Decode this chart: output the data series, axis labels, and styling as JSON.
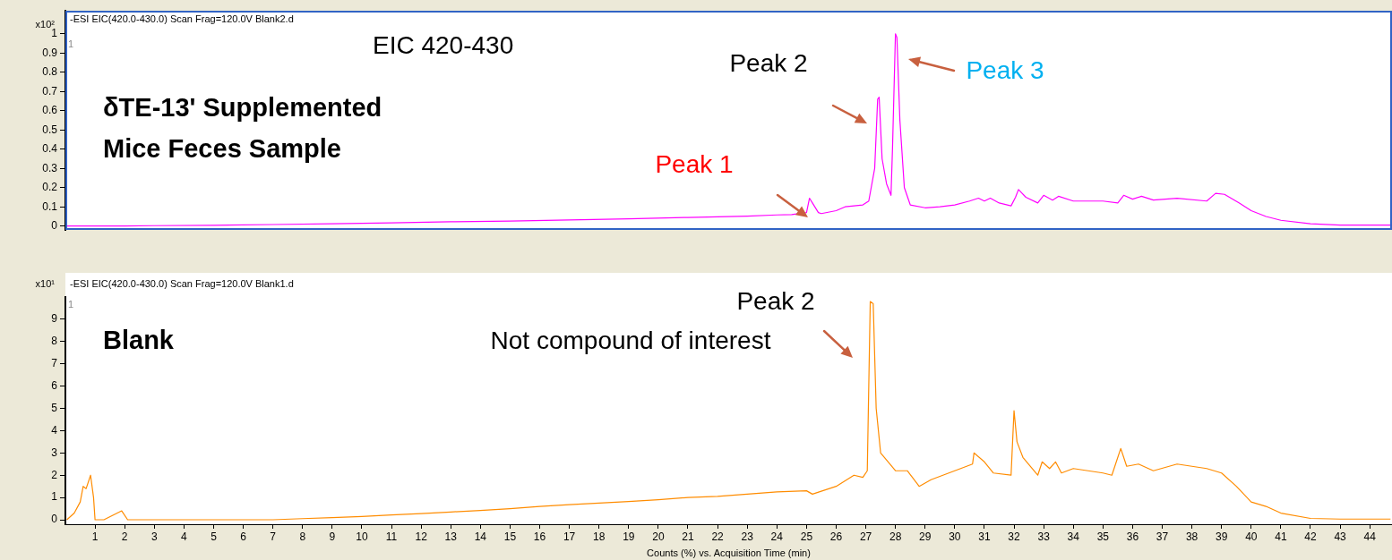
{
  "chart_data": [
    {
      "type": "line",
      "title": "-ESI EIC(420.0-430.0) Scan Frag=120.0V Blank2.d",
      "ylabel": "x10²",
      "tick_labels": "y",
      "xlim": [
        0,
        44.75
      ],
      "xticks": [
        1,
        2,
        3,
        4,
        5,
        6,
        7,
        8,
        9,
        10,
        11,
        12,
        13,
        14,
        15,
        16,
        17,
        18,
        19,
        20,
        21,
        22,
        23,
        24,
        25,
        26,
        27,
        28,
        29,
        30,
        31,
        32,
        33,
        34,
        35,
        36,
        37,
        38,
        39,
        40,
        41,
        42,
        43,
        44
      ],
      "ylim": [
        -0.02,
        1.12
      ],
      "yticks": [
        0,
        0.1,
        0.2,
        0.3,
        0.4,
        0.5,
        0.6,
        0.7,
        0.8,
        0.9,
        1
      ],
      "series": [
        {
          "color": "#ff00ff",
          "x": [
            0.05,
            1,
            2,
            3,
            5,
            7,
            9,
            11,
            13,
            15,
            17,
            19,
            21,
            22,
            23,
            24,
            24.5,
            25.0,
            25.1,
            25.2,
            25.4,
            25.5,
            26,
            26.3,
            26.6,
            26.9,
            27.1,
            27.3,
            27.4,
            27.45,
            27.55,
            27.7,
            27.85,
            27.9,
            28.0,
            28.05,
            28.15,
            28.3,
            28.5,
            29,
            29.5,
            30,
            30.5,
            30.8,
            31,
            31.2,
            31.5,
            31.9,
            32.05,
            32.15,
            32.4,
            32.8,
            33.0,
            33.3,
            33.5,
            34,
            35,
            35.5,
            35.7,
            36,
            36.3,
            36.7,
            37.5,
            38.5,
            38.8,
            39.1,
            39.6,
            40,
            40.5,
            41,
            42,
            43,
            44.7
          ],
          "values": [
            0,
            0,
            0,
            0.002,
            0.004,
            0.008,
            0.012,
            0.017,
            0.022,
            0.026,
            0.032,
            0.038,
            0.045,
            0.048,
            0.052,
            0.058,
            0.06,
            0.07,
            0.145,
            0.12,
            0.07,
            0.065,
            0.08,
            0.1,
            0.105,
            0.11,
            0.13,
            0.3,
            0.66,
            0.67,
            0.35,
            0.22,
            0.16,
            0.4,
            1.0,
            0.98,
            0.55,
            0.2,
            0.11,
            0.095,
            0.1,
            0.11,
            0.13,
            0.145,
            0.13,
            0.145,
            0.12,
            0.105,
            0.15,
            0.19,
            0.15,
            0.12,
            0.16,
            0.135,
            0.155,
            0.13,
            0.13,
            0.12,
            0.16,
            0.14,
            0.155,
            0.135,
            0.145,
            0.13,
            0.17,
            0.165,
            0.12,
            0.08,
            0.05,
            0.03,
            0.012,
            0.005,
            0.005
          ]
        }
      ],
      "annotations": [
        "EIC 420-430",
        "δTE-13' Supplemented Mice Feces Sample",
        "1",
        "Peak 1",
        "Peak 2",
        "Peak 3"
      ]
    },
    {
      "type": "line",
      "title": "-ESI EIC(420.0-430.0) Scan Frag=120.0V Blank1.d",
      "ylabel": "x10¹",
      "xlabel": "Counts (%) vs. Acquisition Time (min)",
      "xlim": [
        0,
        44.75
      ],
      "xticks": [
        1,
        2,
        3,
        4,
        5,
        6,
        7,
        8,
        9,
        10,
        11,
        12,
        13,
        14,
        15,
        16,
        17,
        18,
        19,
        20,
        21,
        22,
        23,
        24,
        25,
        26,
        27,
        28,
        29,
        30,
        31,
        32,
        33,
        34,
        35,
        36,
        37,
        38,
        39,
        40,
        41,
        42,
        43,
        44
      ],
      "ylim": [
        -0.2,
        10
      ],
      "yticks": [
        0,
        1,
        2,
        3,
        4,
        5,
        6,
        7,
        8,
        9
      ],
      "series": [
        {
          "color": "#ff8c00",
          "x": [
            0.05,
            0.3,
            0.5,
            0.6,
            0.7,
            0.85,
            0.95,
            1.0,
            1.3,
            1.6,
            1.9,
            2.1,
            3,
            7,
            8,
            9,
            10,
            11,
            12,
            13,
            14,
            15,
            16,
            17,
            18,
            19,
            20,
            21,
            22,
            23,
            24,
            25,
            25.2,
            26,
            26.6,
            26.9,
            27.05,
            27.15,
            27.25,
            27.35,
            27.5,
            28,
            28.4,
            28.8,
            29.2,
            30,
            30.6,
            30.65,
            31,
            31.3,
            31.9,
            32.0,
            32.1,
            32.3,
            32.8,
            32.95,
            33.2,
            33.4,
            33.6,
            34,
            35,
            35.3,
            35.6,
            35.8,
            36.2,
            36.7,
            37.5,
            38.5,
            39,
            39.5,
            40,
            40.5,
            41,
            42,
            43,
            44.7
          ],
          "values": [
            0,
            0.3,
            0.8,
            1.5,
            1.4,
            2.0,
            1.0,
            0,
            0,
            0.2,
            0.4,
            0,
            0,
            0,
            0.05,
            0.1,
            0.15,
            0.22,
            0.28,
            0.35,
            0.42,
            0.5,
            0.6,
            0.68,
            0.75,
            0.82,
            0.9,
            1.0,
            1.05,
            1.15,
            1.25,
            1.3,
            1.15,
            1.5,
            2.0,
            1.9,
            2.2,
            9.8,
            9.7,
            5.0,
            3.0,
            2.2,
            2.2,
            1.5,
            1.8,
            2.2,
            2.5,
            3.0,
            2.6,
            2.1,
            2.0,
            4.9,
            3.5,
            2.8,
            2.0,
            2.6,
            2.3,
            2.6,
            2.1,
            2.3,
            2.1,
            2.0,
            3.2,
            2.4,
            2.5,
            2.2,
            2.5,
            2.3,
            2.1,
            1.5,
            0.8,
            0.6,
            0.3,
            0.06,
            0.03,
            0.03
          ]
        }
      ],
      "annotations": [
        "Blank",
        "1",
        "Not compound of interest",
        "Peak 2"
      ]
    }
  ]
}
